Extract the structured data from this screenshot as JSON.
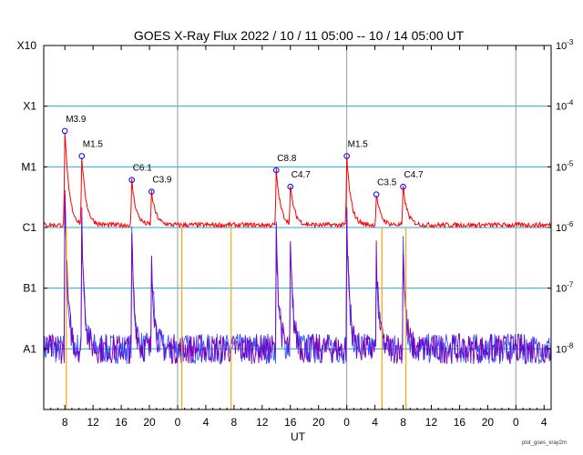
{
  "chart_data": {
    "type": "line",
    "title": "GOES X-Ray Flux   2022 / 10 / 11   05:00 -- 10 / 14   05:00   UT",
    "xlabel": "UT",
    "x_range_hours": [
      0,
      72
    ],
    "x_tick_labels": [
      "8",
      "12",
      "16",
      "20",
      "0",
      "4",
      "8",
      "12",
      "16",
      "20",
      "0",
      "4",
      "8",
      "12",
      "16",
      "20",
      "0",
      "4"
    ],
    "day_boundaries_hours": [
      19,
      43,
      67
    ],
    "y_scale": "log",
    "ylim_flux": [
      1e-09,
      0.001
    ],
    "left_axis_labels": [
      "X10",
      "X1",
      "M1",
      "C1",
      "B1",
      "A1"
    ],
    "right_axis_labels": [
      {
        "base": "10",
        "exp": "-3"
      },
      {
        "base": "10",
        "exp": "-4"
      },
      {
        "base": "10",
        "exp": "-5"
      },
      {
        "base": "10",
        "exp": "-6"
      },
      {
        "base": "10",
        "exp": "-7"
      },
      {
        "base": "10",
        "exp": "-8"
      }
    ],
    "flares": [
      {
        "label": "M3.9",
        "t": 3.0,
        "flux": 3.9e-05
      },
      {
        "label": "M1.5",
        "t": 5.4,
        "flux": 1.5e-05
      },
      {
        "label": "C6.1",
        "t": 12.5,
        "flux": 6.1e-06
      },
      {
        "label": "C3.9",
        "t": 15.3,
        "flux": 3.9e-06
      },
      {
        "label": "C8.8",
        "t": 33.0,
        "flux": 8.8e-06
      },
      {
        "label": "C4.7",
        "t": 35.0,
        "flux": 4.7e-06
      },
      {
        "label": "M1.5",
        "t": 43.0,
        "flux": 1.5e-05
      },
      {
        "label": "C3.5",
        "t": 47.2,
        "flux": 3.5e-06
      },
      {
        "label": "C4.7",
        "t": 51.0,
        "flux": 4.7e-06
      }
    ],
    "series": [
      {
        "color": "#ff0000",
        "baseline_flux": 1.1e-06
      },
      {
        "color": "#3355ff",
        "baseline_flux": 1e-08
      },
      {
        "color": "#7700bb",
        "baseline_flux": 1e-08
      }
    ],
    "colors": {
      "long_channel": "#ff0000",
      "short_channel": "#3355ff",
      "overlap": "#7700bb",
      "gaps": "#ffa500",
      "gridline": "#22aadd",
      "day_divider": "#999999",
      "flare_marker": "#0000ff"
    },
    "credit": "plot_goes_xray2m"
  }
}
